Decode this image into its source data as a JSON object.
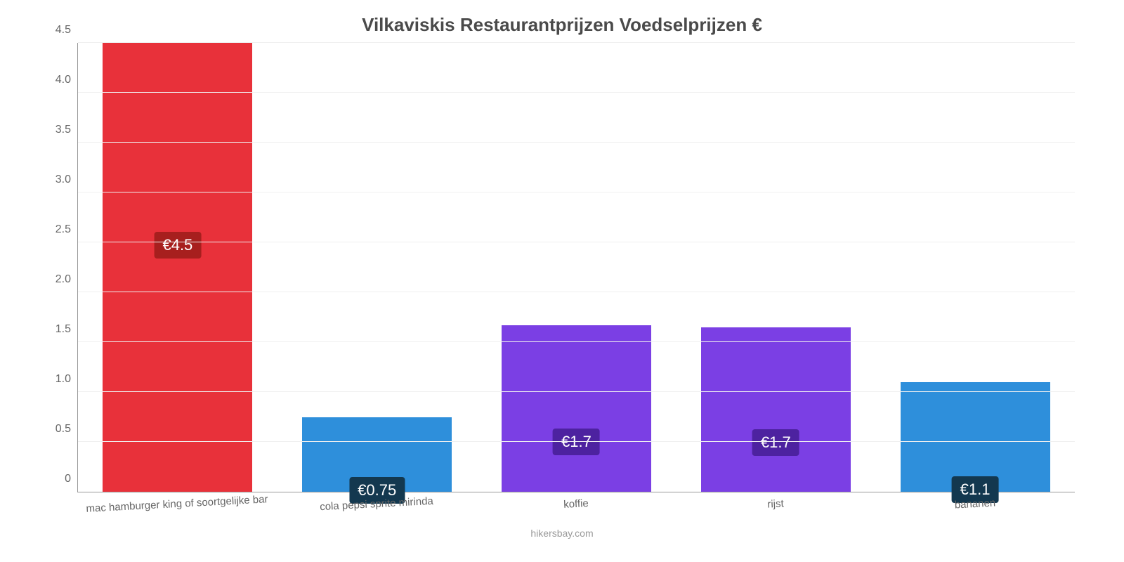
{
  "chart": {
    "type": "bar",
    "title": "Vilkaviskis Restaurantprijzen Voedselprijzen €",
    "title_fontsize": 26,
    "title_color": "#4a4a4a",
    "attribution": "hikersbay.com",
    "attribution_color": "#999999",
    "background_color": "#ffffff",
    "grid_color": "#f0f0f0",
    "axis_color": "#999999",
    "tick_label_color": "#666666",
    "tick_label_fontsize": 16,
    "x_label_fontsize": 15,
    "x_label_rotation_deg": -3,
    "ylim": [
      0,
      4.5
    ],
    "ytick_step": 0.5,
    "yticks": [
      {
        "value": 0,
        "label": "0"
      },
      {
        "value": 0.5,
        "label": "0.5"
      },
      {
        "value": 1.0,
        "label": "1.0"
      },
      {
        "value": 1.5,
        "label": "1.5"
      },
      {
        "value": 2.0,
        "label": "2.0"
      },
      {
        "value": 2.5,
        "label": "2.5"
      },
      {
        "value": 3.0,
        "label": "3.0"
      },
      {
        "value": 3.5,
        "label": "3.5"
      },
      {
        "value": 4.0,
        "label": "4.0"
      },
      {
        "value": 4.5,
        "label": "4.5"
      }
    ],
    "bar_width_pct": 75,
    "bar_label_fontsize": 22,
    "bar_label_text_color": "#ffffff",
    "bars": [
      {
        "category": "mac hamburger king of soortgelijke bar",
        "value": 4.5,
        "display_label": "€4.5",
        "color": "#e8313a",
        "label_bg": "#a71f1e",
        "label_y_pct": 45
      },
      {
        "category": "cola pepsi sprite mirinda",
        "value": 0.75,
        "display_label": "€0.75",
        "color": "#2e8fdb",
        "label_bg": "#13384f",
        "label_y_pct": 98
      },
      {
        "category": "koffie",
        "value": 1.67,
        "display_label": "€1.7",
        "color": "#7b3fe4",
        "label_bg": "#4d22a0",
        "label_y_pct": 70
      },
      {
        "category": "rijst",
        "value": 1.65,
        "display_label": "€1.7",
        "color": "#7b3fe4",
        "label_bg": "#4d22a0",
        "label_y_pct": 70
      },
      {
        "category": "bananen",
        "value": 1.1,
        "display_label": "€1.1",
        "color": "#2e8fdb",
        "label_bg": "#13384f",
        "label_y_pct": 98
      }
    ]
  }
}
